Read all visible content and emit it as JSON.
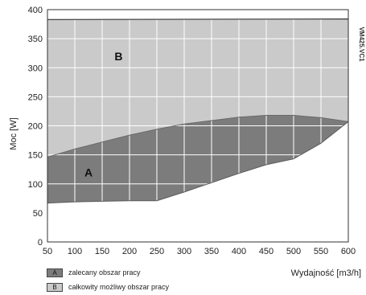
{
  "chart_data": {
    "type": "area",
    "xlabel": "Wydajność [m3/h]",
    "ylabel": "Moc [W]",
    "side_code": "VM425.VC1",
    "xlim": [
      50,
      600
    ],
    "ylim": [
      0,
      400
    ],
    "x_ticks": [
      50,
      100,
      150,
      200,
      250,
      300,
      350,
      400,
      450,
      500,
      550,
      600
    ],
    "y_ticks": [
      0,
      50,
      100,
      150,
      200,
      250,
      300,
      350,
      400
    ],
    "grid": true,
    "series": [
      {
        "name": "B",
        "legend": "całkowity możliwy obszar pracy",
        "color": "#cacaca",
        "upper": [
          [
            50,
            383
          ],
          [
            600,
            384
          ]
        ],
        "lower": [
          [
            50,
            146
          ],
          [
            100,
            160
          ],
          [
            150,
            172
          ],
          [
            200,
            184
          ],
          [
            250,
            194
          ],
          [
            300,
            203
          ],
          [
            350,
            209
          ],
          [
            400,
            215
          ],
          [
            450,
            218
          ],
          [
            500,
            218
          ],
          [
            550,
            214
          ],
          [
            600,
            207
          ]
        ]
      },
      {
        "name": "A",
        "legend": "zalecany obszar pracy",
        "color": "#7c7c7c",
        "upper": [
          [
            50,
            146
          ],
          [
            100,
            160
          ],
          [
            150,
            172
          ],
          [
            200,
            184
          ],
          [
            250,
            194
          ],
          [
            300,
            203
          ],
          [
            350,
            209
          ],
          [
            400,
            215
          ],
          [
            450,
            218
          ],
          [
            500,
            218
          ],
          [
            550,
            214
          ],
          [
            600,
            207
          ]
        ],
        "lower": [
          [
            50,
            67
          ],
          [
            100,
            69
          ],
          [
            150,
            70
          ],
          [
            200,
            71
          ],
          [
            250,
            71
          ],
          [
            300,
            86
          ],
          [
            350,
            102
          ],
          [
            400,
            118
          ],
          [
            450,
            133
          ],
          [
            500,
            143
          ],
          [
            550,
            170
          ],
          [
            600,
            207
          ]
        ]
      }
    ],
    "region_labels": [
      {
        "text": "B",
        "x": 180,
        "y": 320
      },
      {
        "text": "A",
        "x": 125,
        "y": 120
      }
    ],
    "legend": [
      {
        "key": "A",
        "label": "zalecany obszar pracy",
        "color": "#7c7c7c"
      },
      {
        "key": "B",
        "label": "całkowity możliwy obszar pracy",
        "color": "#cacaca"
      }
    ]
  }
}
